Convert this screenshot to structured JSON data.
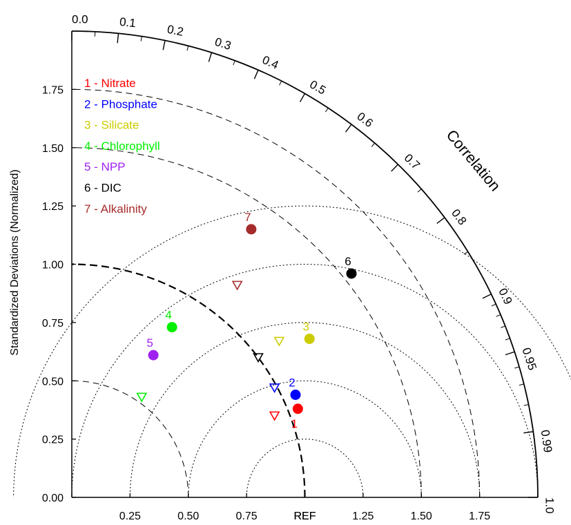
{
  "chart_data": {
    "type": "scatter",
    "subtype": "taylor-diagram",
    "ylabel": "Standardized Deviations (Normalized)",
    "correlation_label": "Correlation",
    "ref_label": "REF",
    "ylim": [
      0,
      2
    ],
    "x_tick_labels": [
      "0.00",
      "0.25",
      "0.50",
      "0.75",
      "REF",
      "1.25",
      "1.50",
      "1.75"
    ],
    "y_tick_labels": [
      "0.00",
      "0.25",
      "0.50",
      "0.75",
      "1.00",
      "1.25",
      "1.50",
      "1.75"
    ],
    "correlation_ticks": [
      "0.0",
      "0.1",
      "0.2",
      "0.3",
      "0.4",
      "0.5",
      "0.6",
      "0.7",
      "0.8",
      "0.9",
      "0.95",
      "0.99",
      "1.0"
    ],
    "legend_position": "top-left",
    "series": [
      {
        "id": "1",
        "name": "Nitrate",
        "color": "#ff0000",
        "filled": {
          "x": 0.97,
          "y": 0.38
        },
        "open": {
          "x": 0.87,
          "y": 0.35
        }
      },
      {
        "id": "2",
        "name": "Phosphate",
        "color": "#0000ff",
        "filled": {
          "x": 0.96,
          "y": 0.44
        },
        "open": {
          "x": 0.87,
          "y": 0.47
        }
      },
      {
        "id": "3",
        "name": "Silicate",
        "color": "#cccc00",
        "filled": {
          "x": 1.02,
          "y": 0.68
        },
        "open": {
          "x": 0.89,
          "y": 0.67
        }
      },
      {
        "id": "4",
        "name": "Chlorophyll",
        "color": "#00ee00",
        "filled": {
          "x": 0.43,
          "y": 0.73
        },
        "open": {
          "x": 0.3,
          "y": 0.43
        }
      },
      {
        "id": "5",
        "name": "NPP",
        "color": "#a020f0",
        "filled": {
          "x": 0.35,
          "y": 0.61
        },
        "open": null
      },
      {
        "id": "6",
        "name": "DIC",
        "color": "#000000",
        "filled": {
          "x": 1.2,
          "y": 0.96
        },
        "open": {
          "x": 0.8,
          "y": 0.6
        }
      },
      {
        "id": "7",
        "name": "Alkalinity",
        "color": "#a52a2a",
        "filled": {
          "x": 0.77,
          "y": 1.15
        },
        "open": {
          "x": 0.71,
          "y": 0.91
        }
      }
    ]
  }
}
